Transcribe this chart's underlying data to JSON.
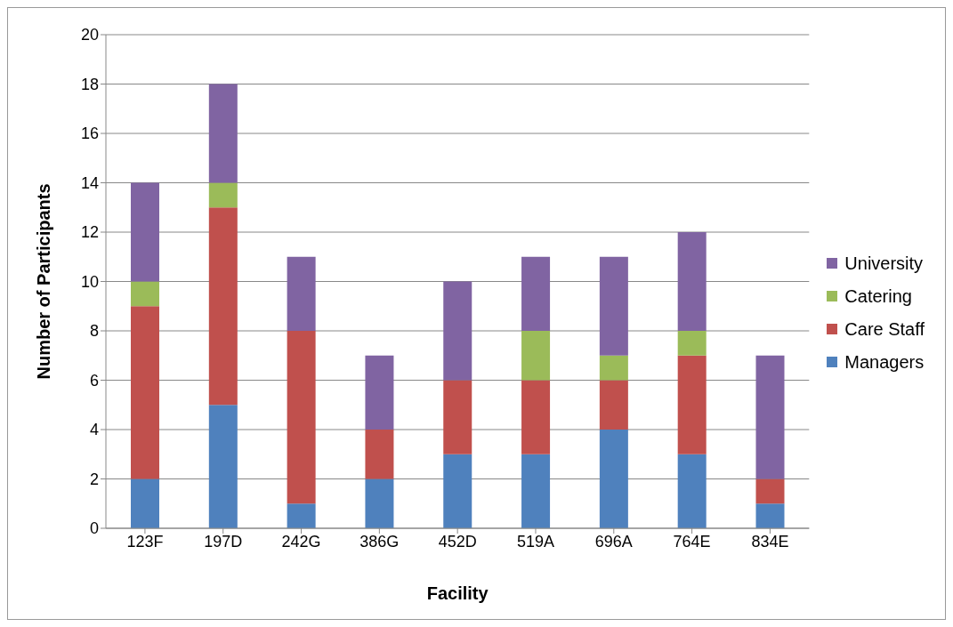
{
  "chart_data": {
    "type": "bar",
    "xlabel": "Facility",
    "ylabel": "Number of Participants",
    "categories": [
      "123F",
      "197D",
      "242G",
      "386G",
      "452D",
      "519A",
      "696A",
      "764E",
      "834E"
    ],
    "stacked": true,
    "series": [
      {
        "name": "Managers",
        "color": "#4f81bd",
        "values": [
          2,
          5,
          1,
          2,
          3,
          3,
          4,
          3,
          1
        ]
      },
      {
        "name": "Care Staff",
        "color": "#c0504d",
        "values": [
          7,
          8,
          7,
          2,
          3,
          3,
          2,
          4,
          1
        ]
      },
      {
        "name": "Catering",
        "color": "#9bbb59",
        "values": [
          1,
          1,
          0,
          0,
          0,
          2,
          1,
          1,
          0
        ]
      },
      {
        "name": "University",
        "color": "#8064a2",
        "values": [
          4,
          4,
          3,
          3,
          4,
          3,
          4,
          4,
          5
        ]
      }
    ],
    "ylim": [
      0,
      20
    ],
    "yticks": [
      0,
      2,
      4,
      6,
      8,
      10,
      12,
      14,
      16,
      18,
      20
    ],
    "grid": "y",
    "legend": "right"
  }
}
